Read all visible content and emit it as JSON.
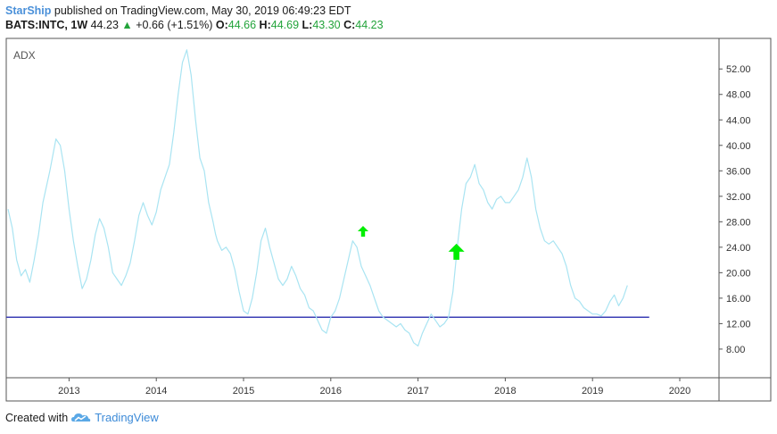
{
  "header": {
    "author": "StarShip",
    "published_text": "published on TradingView.com, May 30, 2019 06:49:23 EDT",
    "symbol": "BATS:INTC, 1W",
    "last": "44.23",
    "change": "+0.66 (+1.51%)",
    "open_label": "O:",
    "open": "44.66",
    "high_label": "H:",
    "high": "44.69",
    "low_label": "L:",
    "low": "43.30",
    "close_label": "C:",
    "close": "44.23"
  },
  "footer": {
    "created_text": "Created with",
    "brand": "TradingView",
    "logo_icon": "tradingview-cloud-logo"
  },
  "chart_data": {
    "type": "line",
    "title": "ADX",
    "xlabel": "",
    "ylabel": "",
    "x_ticks": [
      "2013",
      "2014",
      "2015",
      "2016",
      "2017",
      "2018",
      "2019",
      "2020"
    ],
    "y_ticks": [
      "8.00",
      "12.00",
      "16.00",
      "20.00",
      "24.00",
      "28.00",
      "32.00",
      "36.00",
      "40.00",
      "44.00",
      "48.00",
      "52.00"
    ],
    "xlim": [
      2012.28,
      2020.45
    ],
    "ylim": [
      3.5,
      56.8
    ],
    "grid": false,
    "colors": {
      "line": "#a9e4f2",
      "hline": "#3b3fb5",
      "arrow": "#00ee00",
      "axis": "#555555"
    },
    "horizontal_line": {
      "y": 13.0,
      "x_start": 2012.28,
      "x_end": 2019.65
    },
    "arrows": [
      {
        "x": 2016.37,
        "y": 26.5,
        "size": "small",
        "icon": "up-arrow-icon"
      },
      {
        "x": 2017.44,
        "y": 23.3,
        "size": "large",
        "icon": "up-arrow-icon"
      }
    ],
    "series": [
      {
        "x": [
          2012.3,
          2012.35,
          2012.4,
          2012.45,
          2012.5,
          2012.55,
          2012.6,
          2012.65,
          2012.7,
          2012.78,
          2012.85,
          2012.9,
          2012.95,
          2013.0,
          2013.05,
          2013.1,
          2013.15,
          2013.2,
          2013.25,
          2013.3,
          2013.35,
          2013.4,
          2013.45,
          2013.5,
          2013.55,
          2013.6,
          2013.65,
          2013.7,
          2013.75,
          2013.8,
          2013.85,
          2013.9,
          2013.95,
          2014.0,
          2014.05,
          2014.1,
          2014.15,
          2014.2,
          2014.25,
          2014.3,
          2014.35,
          2014.4,
          2014.45,
          2014.5,
          2014.55,
          2014.6,
          2014.65,
          2014.68,
          2014.7,
          2014.75,
          2014.8,
          2014.85,
          2014.9,
          2014.95,
          2015.0,
          2015.05,
          2015.1,
          2015.15,
          2015.2,
          2015.25,
          2015.3,
          2015.35,
          2015.4,
          2015.45,
          2015.5,
          2015.55,
          2015.6,
          2015.65,
          2015.7,
          2015.75,
          2015.8,
          2015.85,
          2015.9,
          2015.95,
          2016.0,
          2016.05,
          2016.1,
          2016.15,
          2016.2,
          2016.25,
          2016.3,
          2016.35,
          2016.4,
          2016.45,
          2016.5,
          2016.55,
          2016.6,
          2016.65,
          2016.7,
          2016.75,
          2016.8,
          2016.85,
          2016.9,
          2016.95,
          2017.0,
          2017.05,
          2017.1,
          2017.15,
          2017.2,
          2017.25,
          2017.3,
          2017.35,
          2017.4,
          2017.45,
          2017.5,
          2017.55,
          2017.6,
          2017.65,
          2017.7,
          2017.75,
          2017.8,
          2017.85,
          2017.9,
          2017.95,
          2018.0,
          2018.05,
          2018.1,
          2018.15,
          2018.2,
          2018.25,
          2018.3,
          2018.35,
          2018.4,
          2018.45,
          2018.5,
          2018.55,
          2018.6,
          2018.65,
          2018.7,
          2018.75,
          2018.8,
          2018.85,
          2018.9,
          2018.95,
          2019.0,
          2019.05,
          2019.1,
          2019.15,
          2019.2,
          2019.25,
          2019.3,
          2019.35,
          2019.4
        ],
        "values": [
          30.0,
          27.0,
          22.0,
          19.5,
          20.5,
          18.5,
          22.0,
          26.0,
          31.0,
          36.0,
          41.0,
          40.0,
          36.0,
          30.0,
          25.0,
          21.0,
          17.5,
          19.0,
          22.0,
          26.0,
          28.5,
          27.0,
          24.0,
          20.0,
          19.0,
          18.0,
          19.5,
          21.5,
          25.0,
          29.0,
          31.0,
          29.0,
          27.5,
          29.5,
          33.0,
          35.0,
          37.0,
          42.0,
          48.0,
          53.0,
          55.0,
          51.0,
          44.0,
          38.0,
          36.0,
          31.0,
          28.0,
          26.0,
          25.0,
          23.5,
          24.0,
          23.0,
          20.5,
          17.0,
          14.0,
          13.5,
          16.0,
          20.0,
          25.0,
          27.0,
          24.0,
          21.5,
          19.0,
          18.0,
          19.0,
          21.0,
          19.5,
          17.5,
          16.5,
          14.5,
          14.0,
          12.5,
          11.0,
          10.5,
          13.0,
          14.0,
          16.0,
          19.0,
          22.0,
          25.0,
          24.0,
          21.0,
          19.5,
          18.0,
          16.0,
          14.0,
          13.0,
          12.5,
          12.0,
          11.5,
          12.0,
          11.0,
          10.5,
          9.0,
          8.5,
          10.5,
          12.0,
          13.5,
          12.5,
          11.5,
          12.0,
          13.0,
          17.0,
          24.0,
          30.0,
          34.0,
          35.0,
          37.0,
          34.0,
          33.0,
          31.0,
          30.0,
          31.5,
          32.0,
          31.0,
          31.0,
          32.0,
          33.0,
          35.0,
          38.0,
          35.0,
          30.0,
          27.0,
          25.0,
          24.5,
          25.0,
          24.0,
          23.0,
          21.0,
          18.0,
          16.0,
          15.5,
          14.5,
          14.0,
          13.5,
          13.5,
          13.2,
          14.0,
          15.5,
          16.5,
          14.8,
          16.0,
          18.0
        ]
      }
    ]
  }
}
